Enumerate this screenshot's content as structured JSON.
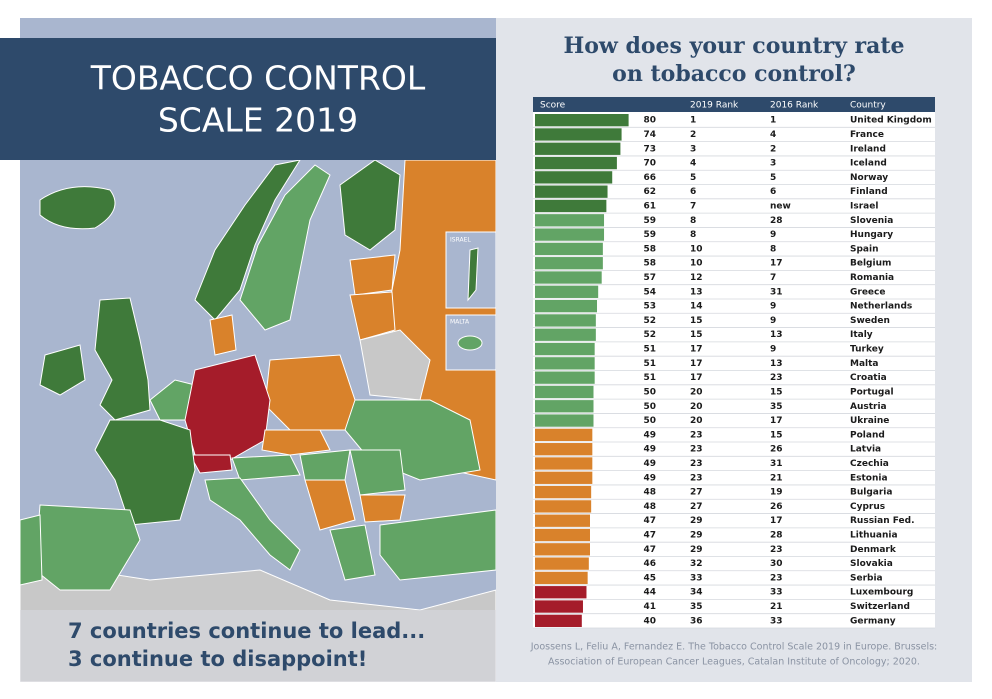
{
  "header": {
    "title_lines": [
      "TOBACCO CONTROL",
      "SCALE 2019"
    ],
    "tagline_lines": [
      "7 countries continue to lead...",
      "3 continue to disappoint!"
    ]
  },
  "map": {
    "inset_labels": [
      "ISRAEL",
      "MALTA"
    ]
  },
  "panel": {
    "heading_lines": [
      "How does your country rate",
      "on tobacco control?"
    ],
    "citation_lines": [
      "Joossens L, Feliu A, Fernandez E. The Tobacco Control Scale 2019 in Europe. Brussels:",
      "Association of European Cancer Leagues, Catalan Institute of Oncology; 2020."
    ]
  },
  "table": {
    "columns": [
      "Score",
      "2019 Rank",
      "2016 Rank",
      "Country"
    ],
    "rows": [
      {
        "score": 80,
        "rank_2019": 1,
        "rank_2016": 1,
        "country": "United Kingdom",
        "color": "#3f7a3a"
      },
      {
        "score": 74,
        "rank_2019": 2,
        "rank_2016": 4,
        "country": "France",
        "color": "#3f7a3a"
      },
      {
        "score": 73,
        "rank_2019": 3,
        "rank_2016": 2,
        "country": "Ireland",
        "color": "#3f7a3a"
      },
      {
        "score": 70,
        "rank_2019": 4,
        "rank_2016": 3,
        "country": "Iceland",
        "color": "#3f7a3a"
      },
      {
        "score": 66,
        "rank_2019": 5,
        "rank_2016": 5,
        "country": "Norway",
        "color": "#3f7a3a"
      },
      {
        "score": 62,
        "rank_2019": 6,
        "rank_2016": 6,
        "country": "Finland",
        "color": "#3f7a3a"
      },
      {
        "score": 61,
        "rank_2019": 7,
        "rank_2016": "new",
        "country": "Israel",
        "color": "#3f7a3a"
      },
      {
        "score": 59,
        "rank_2019": 8,
        "rank_2016": 28,
        "country": "Slovenia",
        "color": "#62a465"
      },
      {
        "score": 59,
        "rank_2019": 8,
        "rank_2016": 9,
        "country": "Hungary",
        "color": "#62a465"
      },
      {
        "score": 58,
        "rank_2019": 10,
        "rank_2016": 8,
        "country": "Spain",
        "color": "#62a465"
      },
      {
        "score": 58,
        "rank_2019": 10,
        "rank_2016": 17,
        "country": "Belgium",
        "color": "#62a465"
      },
      {
        "score": 57,
        "rank_2019": 12,
        "rank_2016": 7,
        "country": "Romania",
        "color": "#62a465"
      },
      {
        "score": 54,
        "rank_2019": 13,
        "rank_2016": 31,
        "country": "Greece",
        "color": "#62a465"
      },
      {
        "score": 53,
        "rank_2019": 14,
        "rank_2016": 9,
        "country": "Netherlands",
        "color": "#62a465"
      },
      {
        "score": 52,
        "rank_2019": 15,
        "rank_2016": 9,
        "country": "Sweden",
        "color": "#62a465"
      },
      {
        "score": 52,
        "rank_2019": 15,
        "rank_2016": 13,
        "country": "Italy",
        "color": "#62a465"
      },
      {
        "score": 51,
        "rank_2019": 17,
        "rank_2016": 9,
        "country": "Turkey",
        "color": "#62a465"
      },
      {
        "score": 51,
        "rank_2019": 17,
        "rank_2016": 13,
        "country": "Malta",
        "color": "#62a465"
      },
      {
        "score": 51,
        "rank_2019": 17,
        "rank_2016": 23,
        "country": "Croatia",
        "color": "#62a465"
      },
      {
        "score": 50,
        "rank_2019": 20,
        "rank_2016": 15,
        "country": "Portugal",
        "color": "#62a465"
      },
      {
        "score": 50,
        "rank_2019": 20,
        "rank_2016": 35,
        "country": "Austria",
        "color": "#62a465"
      },
      {
        "score": 50,
        "rank_2019": 20,
        "rank_2016": 17,
        "country": "Ukraine",
        "color": "#62a465"
      },
      {
        "score": 49,
        "rank_2019": 23,
        "rank_2016": 15,
        "country": "Poland",
        "color": "#d9822b"
      },
      {
        "score": 49,
        "rank_2019": 23,
        "rank_2016": 26,
        "country": "Latvia",
        "color": "#d9822b"
      },
      {
        "score": 49,
        "rank_2019": 23,
        "rank_2016": 31,
        "country": "Czechia",
        "color": "#d9822b"
      },
      {
        "score": 49,
        "rank_2019": 23,
        "rank_2016": 21,
        "country": "Estonia",
        "color": "#d9822b"
      },
      {
        "score": 48,
        "rank_2019": 27,
        "rank_2016": 19,
        "country": "Bulgaria",
        "color": "#d9822b"
      },
      {
        "score": 48,
        "rank_2019": 27,
        "rank_2016": 26,
        "country": "Cyprus",
        "color": "#d9822b"
      },
      {
        "score": 47,
        "rank_2019": 29,
        "rank_2016": 17,
        "country": "Russian Fed.",
        "color": "#d9822b"
      },
      {
        "score": 47,
        "rank_2019": 29,
        "rank_2016": 28,
        "country": "Lithuania",
        "color": "#d9822b"
      },
      {
        "score": 47,
        "rank_2019": 29,
        "rank_2016": 23,
        "country": "Denmark",
        "color": "#d9822b"
      },
      {
        "score": 46,
        "rank_2019": 32,
        "rank_2016": 30,
        "country": "Slovakia",
        "color": "#d9822b"
      },
      {
        "score": 45,
        "rank_2019": 33,
        "rank_2016": 23,
        "country": "Serbia",
        "color": "#d9822b"
      },
      {
        "score": 44,
        "rank_2019": 34,
        "rank_2016": 33,
        "country": "Luxembourg",
        "color": "#a51c2a"
      },
      {
        "score": 41,
        "rank_2019": 35,
        "rank_2016": 21,
        "country": "Switzerland",
        "color": "#a51c2a"
      },
      {
        "score": 40,
        "rank_2019": 36,
        "rank_2016": 33,
        "country": "Germany",
        "color": "#a51c2a"
      }
    ]
  }
}
